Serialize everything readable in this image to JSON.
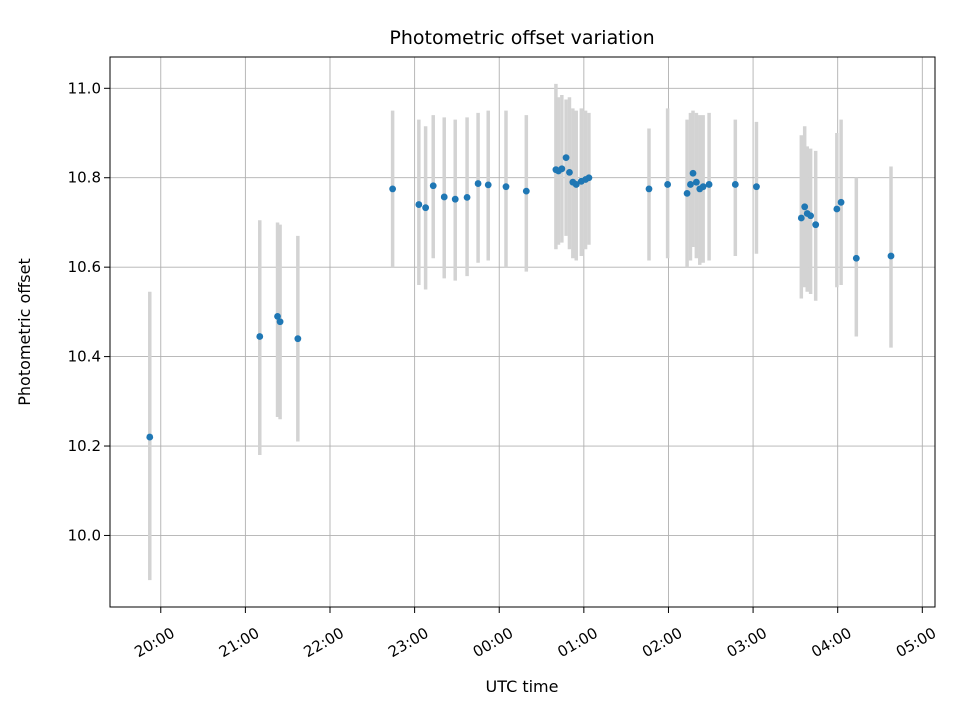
{
  "chart_data": {
    "type": "scatter",
    "title": "Photometric offset variation",
    "xlabel": "UTC time",
    "ylabel": "Photometric offset",
    "x_encoding": "decimal hours UTC; values >= 24 are past midnight",
    "xlim": [
      19.4,
      29.15
    ],
    "ylim": [
      9.84,
      11.07
    ],
    "grid": true,
    "legend_position": "none",
    "marker_color": "#1f77b4",
    "errorbar_color": "#d3d3d3",
    "grid_color": "#b0b0b0",
    "x_ticks": [
      {
        "v": 20,
        "label": "20:00"
      },
      {
        "v": 21,
        "label": "21:00"
      },
      {
        "v": 22,
        "label": "22:00"
      },
      {
        "v": 23,
        "label": "23:00"
      },
      {
        "v": 24,
        "label": "00:00"
      },
      {
        "v": 25,
        "label": "01:00"
      },
      {
        "v": 26,
        "label": "02:00"
      },
      {
        "v": 27,
        "label": "03:00"
      },
      {
        "v": 28,
        "label": "04:00"
      },
      {
        "v": 29,
        "label": "05:00"
      }
    ],
    "y_ticks": [
      {
        "v": 10.0,
        "label": "10.0"
      },
      {
        "v": 10.2,
        "label": "10.2"
      },
      {
        "v": 10.4,
        "label": "10.4"
      },
      {
        "v": 10.6,
        "label": "10.6"
      },
      {
        "v": 10.8,
        "label": "10.8"
      },
      {
        "v": 11.0,
        "label": "11.0"
      }
    ],
    "points_format": [
      "x_hours",
      "y_offset",
      "err_low",
      "err_high"
    ],
    "points": [
      [
        19.87,
        10.22,
        9.9,
        10.545
      ],
      [
        21.17,
        10.445,
        10.18,
        10.705
      ],
      [
        21.38,
        10.49,
        10.265,
        10.7
      ],
      [
        21.41,
        10.478,
        10.26,
        10.695
      ],
      [
        21.62,
        10.44,
        10.21,
        10.67
      ],
      [
        22.74,
        10.775,
        10.6,
        10.95
      ],
      [
        23.05,
        10.74,
        10.56,
        10.93
      ],
      [
        23.13,
        10.733,
        10.55,
        10.915
      ],
      [
        23.22,
        10.782,
        10.62,
        10.94
      ],
      [
        23.35,
        10.757,
        10.575,
        10.935
      ],
      [
        23.48,
        10.752,
        10.57,
        10.93
      ],
      [
        23.62,
        10.756,
        10.58,
        10.935
      ],
      [
        23.75,
        10.787,
        10.61,
        10.945
      ],
      [
        23.87,
        10.784,
        10.615,
        10.95
      ],
      [
        24.08,
        10.78,
        10.6,
        10.95
      ],
      [
        24.32,
        10.77,
        10.59,
        10.94
      ],
      [
        24.67,
        10.818,
        10.64,
        11.01
      ],
      [
        24.7,
        10.815,
        10.65,
        10.98
      ],
      [
        24.74,
        10.82,
        10.655,
        10.985
      ],
      [
        24.79,
        10.845,
        10.67,
        10.975
      ],
      [
        24.83,
        10.812,
        10.64,
        10.98
      ],
      [
        24.87,
        10.79,
        10.62,
        10.955
      ],
      [
        24.91,
        10.785,
        10.615,
        10.95
      ],
      [
        24.97,
        10.792,
        10.625,
        10.955
      ],
      [
        25.02,
        10.796,
        10.64,
        10.95
      ],
      [
        25.06,
        10.8,
        10.65,
        10.945
      ],
      [
        25.77,
        10.775,
        10.615,
        10.91
      ],
      [
        25.99,
        10.785,
        10.62,
        10.955
      ],
      [
        26.22,
        10.765,
        10.6,
        10.93
      ],
      [
        26.26,
        10.785,
        10.615,
        10.945
      ],
      [
        26.29,
        10.81,
        10.645,
        10.95
      ],
      [
        26.33,
        10.79,
        10.62,
        10.945
      ],
      [
        26.37,
        10.775,
        10.605,
        10.94
      ],
      [
        26.41,
        10.78,
        10.61,
        10.94
      ],
      [
        26.48,
        10.785,
        10.615,
        10.945
      ],
      [
        26.79,
        10.785,
        10.625,
        10.93
      ],
      [
        27.04,
        10.78,
        10.63,
        10.925
      ],
      [
        27.57,
        10.71,
        10.53,
        10.895
      ],
      [
        27.61,
        10.735,
        10.555,
        10.915
      ],
      [
        27.64,
        10.72,
        10.545,
        10.87
      ],
      [
        27.68,
        10.715,
        10.54,
        10.865
      ],
      [
        27.74,
        10.695,
        10.525,
        10.86
      ],
      [
        27.99,
        10.73,
        10.555,
        10.9
      ],
      [
        28.04,
        10.745,
        10.56,
        10.93
      ],
      [
        28.22,
        10.62,
        10.445,
        10.8
      ],
      [
        28.63,
        10.625,
        10.42,
        10.825
      ]
    ]
  }
}
